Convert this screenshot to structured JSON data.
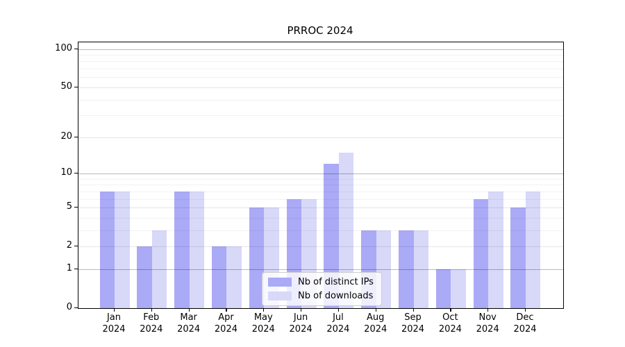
{
  "title": "PRROC 2024",
  "chart_data": {
    "type": "bar",
    "title": "PRROC 2024",
    "xlabel": "",
    "ylabel": "",
    "categories": [
      "Jan 2024",
      "Feb 2024",
      "Mar 2024",
      "Apr 2024",
      "May 2024",
      "Jun 2024",
      "Jul 2024",
      "Aug 2024",
      "Sep 2024",
      "Oct 2024",
      "Nov 2024",
      "Dec 2024"
    ],
    "x_tick_labels": [
      {
        "line1": "Jan",
        "line2": "2024"
      },
      {
        "line1": "Feb",
        "line2": "2024"
      },
      {
        "line1": "Mar",
        "line2": "2024"
      },
      {
        "line1": "Apr",
        "line2": "2024"
      },
      {
        "line1": "May",
        "line2": "2024"
      },
      {
        "line1": "Jun",
        "line2": "2024"
      },
      {
        "line1": "Jul",
        "line2": "2024"
      },
      {
        "line1": "Aug",
        "line2": "2024"
      },
      {
        "line1": "Sep",
        "line2": "2024"
      },
      {
        "line1": "Oct",
        "line2": "2024"
      },
      {
        "line1": "Nov",
        "line2": "2024"
      },
      {
        "line1": "Dec",
        "line2": "2024"
      }
    ],
    "series": [
      {
        "name": "Nb of distinct IPs",
        "color": "#aaaaf6",
        "values": [
          7,
          2,
          7,
          2,
          5,
          6,
          12,
          3,
          3,
          1,
          6,
          5
        ]
      },
      {
        "name": "Nb of downloads",
        "color": "#d8d8f9",
        "values": [
          7,
          3,
          7,
          2,
          5,
          6,
          15,
          3,
          3,
          1,
          7,
          7
        ]
      }
    ],
    "yaxis": {
      "scale": "log1p",
      "major_ticks": [
        0,
        1,
        2,
        5,
        10,
        20,
        50,
        100
      ],
      "decade_gridlines": [
        1,
        10,
        100
      ],
      "mid_gridlines": [
        2,
        5,
        20,
        50
      ],
      "minor_gridlines": [
        3,
        4,
        6,
        7,
        8,
        9,
        30,
        40,
        60,
        70,
        80,
        90
      ],
      "ylim": [
        0,
        113
      ]
    },
    "legend": {
      "position": "lower center",
      "entries": [
        "Nb of distinct IPs",
        "Nb of downloads"
      ]
    },
    "grid": true
  }
}
